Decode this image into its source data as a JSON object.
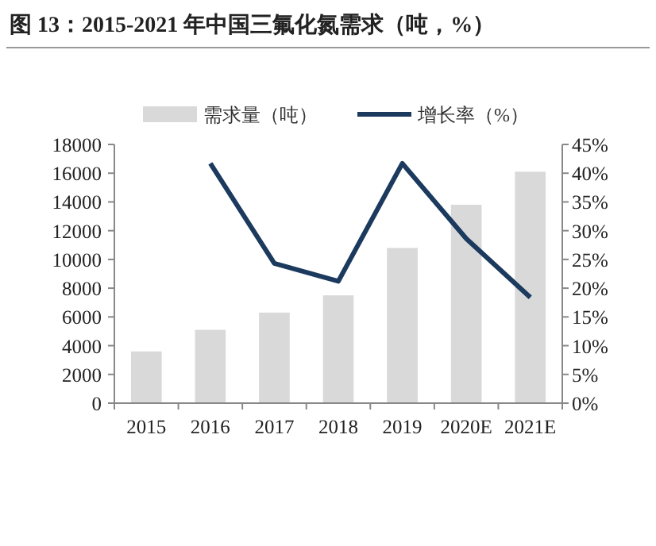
{
  "chart_data": {
    "type": "bar",
    "title": "图 13：2015-2021 年中国三氟化氮需求（吨，%）",
    "categories": [
      "2015",
      "2016",
      "2017",
      "2018",
      "2019",
      "2020E",
      "2021E"
    ],
    "series": [
      {
        "name": "需求量（吨）",
        "color": "#d9d9d9",
        "values": [
          3600,
          5100,
          6300,
          7500,
          10800,
          13800,
          16100
        ]
      },
      {
        "name": "增长率（%）",
        "type": "line",
        "axis": "y2",
        "color": "#1c3a5e",
        "values": [
          null,
          41.7,
          24.3,
          21.2,
          41.7,
          28.6,
          18.4
        ]
      }
    ],
    "ylim": [
      0,
      18000
    ],
    "yticks": [
      0,
      2000,
      4000,
      6000,
      8000,
      10000,
      12000,
      14000,
      16000,
      18000
    ],
    "y2lim": [
      0,
      45
    ],
    "y2ticks": [
      {
        "value": 0,
        "label": "0%"
      },
      {
        "value": 5,
        "label": "5%"
      },
      {
        "value": 10,
        "label": "10%"
      },
      {
        "value": 15,
        "label": "15%"
      },
      {
        "value": 20,
        "label": "20%"
      },
      {
        "value": 25,
        "label": "25%"
      },
      {
        "value": 30,
        "label": "30%"
      },
      {
        "value": 35,
        "label": "35%"
      },
      {
        "value": 40,
        "label": "40%"
      },
      {
        "value": 45,
        "label": "45%"
      }
    ],
    "grid": false,
    "legend": "top",
    "marker": "none",
    "line_style": "solid"
  }
}
